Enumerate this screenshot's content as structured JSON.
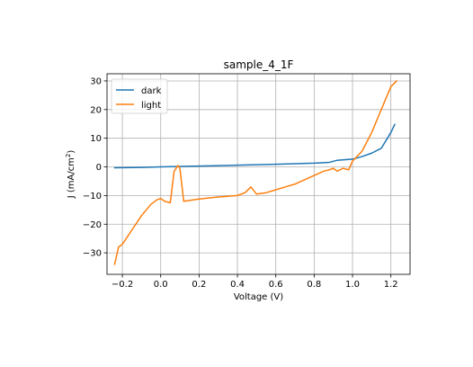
{
  "chart_data": {
    "type": "line",
    "title": "sample_4_1F",
    "xlabel": "Voltage (V)",
    "ylabel_main": "J (mA/cm",
    "ylabel_sup": "2",
    "ylabel_end": ")",
    "xlim": [
      -0.28,
      1.3
    ],
    "ylim": [
      -37.5,
      32.5
    ],
    "xticks": [
      -0.2,
      0.0,
      0.2,
      0.4,
      0.6,
      0.8,
      1.0,
      1.2
    ],
    "xtick_labels": [
      "−0.2",
      "0.0",
      "0.2",
      "0.4",
      "0.6",
      "0.8",
      "1.0",
      "1.2"
    ],
    "yticks": [
      -30,
      -20,
      -10,
      0,
      10,
      20,
      30
    ],
    "ytick_labels": [
      "−30",
      "−20",
      "−10",
      "0",
      "10",
      "20",
      "30"
    ],
    "grid": true,
    "legend_position": "upper-left",
    "series": [
      {
        "name": "dark",
        "color": "#1f77b4",
        "x": [
          -0.24,
          -0.1,
          0.0,
          0.2,
          0.4,
          0.6,
          0.8,
          0.88,
          0.92,
          1.0,
          1.05,
          1.1,
          1.15,
          1.18,
          1.2,
          1.22
        ],
        "y": [
          -0.3,
          -0.2,
          0.0,
          0.3,
          0.6,
          0.9,
          1.3,
          1.6,
          2.3,
          2.7,
          3.6,
          4.8,
          6.5,
          9.8,
          12.0,
          14.8
        ]
      },
      {
        "name": "light",
        "color": "#ff7f0e",
        "x": [
          -0.24,
          -0.22,
          -0.2,
          -0.15,
          -0.1,
          -0.05,
          -0.02,
          0.0,
          0.02,
          0.05,
          0.07,
          0.09,
          0.1,
          0.12,
          0.2,
          0.3,
          0.4,
          0.44,
          0.47,
          0.5,
          0.55,
          0.6,
          0.65,
          0.7,
          0.75,
          0.8,
          0.85,
          0.88,
          0.9,
          0.92,
          0.95,
          0.98,
          1.0,
          1.05,
          1.1,
          1.15,
          1.2,
          1.23
        ],
        "y": [
          -34,
          -28,
          -27,
          -22,
          -17,
          -13,
          -11.5,
          -11,
          -12,
          -12.5,
          -1.5,
          0.5,
          -0.5,
          -12,
          -11.2,
          -10.5,
          -10,
          -9,
          -7,
          -9.5,
          -9,
          -8,
          -7,
          -6,
          -4.5,
          -3,
          -1.5,
          -1,
          -0.5,
          -1.5,
          -0.5,
          -1,
          2,
          5.5,
          12,
          20,
          28,
          30
        ]
      }
    ]
  }
}
